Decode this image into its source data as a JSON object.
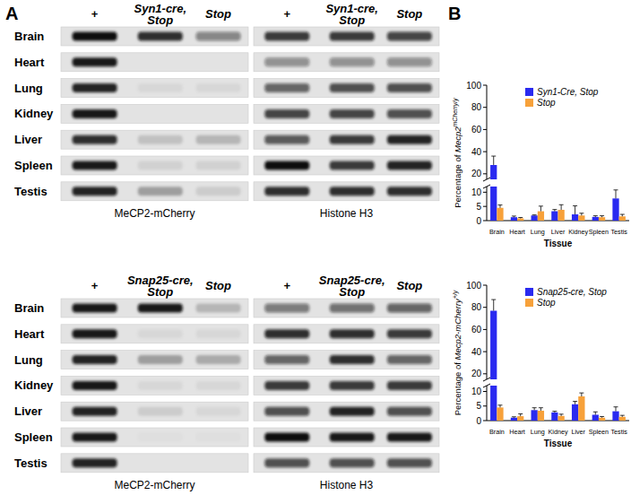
{
  "panel_labels": [
    "A",
    "B"
  ],
  "blots": [
    {
      "lanes": [
        [
          "+"
        ],
        [
          "Syn1-cre,",
          "Stop"
        ],
        [
          "Stop"
        ]
      ],
      "tissues": [
        "Brain",
        "Heart",
        "Lung",
        "Kidney",
        "Liver",
        "Spleen",
        "Testis"
      ],
      "panels": [
        {
          "caption": "MeCP2-mCherry",
          "intensity": [
            [
              1,
              0.85,
              0.45
            ],
            [
              0.95,
              0,
              0
            ],
            [
              0.9,
              0.05,
              0.05
            ],
            [
              0.95,
              0,
              0
            ],
            [
              0.85,
              0.15,
              0.2
            ],
            [
              0.95,
              0.08,
              0.08
            ],
            [
              0.9,
              0.3,
              0.1
            ]
          ]
        },
        {
          "caption": "Histone H3",
          "intensity": [
            [
              0.8,
              0.8,
              0.75
            ],
            [
              0.4,
              0.4,
              0.4
            ],
            [
              0.6,
              0.7,
              0.7
            ],
            [
              0.75,
              0.75,
              0.7
            ],
            [
              0.65,
              0.8,
              0.9
            ],
            [
              1,
              0.8,
              0.9
            ],
            [
              0.85,
              0.85,
              0.85
            ]
          ]
        }
      ]
    },
    {
      "lanes": [
        [
          "+"
        ],
        [
          "Snap25-cre,",
          "Stop"
        ],
        [
          "Stop"
        ]
      ],
      "tissues": [
        "Brain",
        "Heart",
        "Lung",
        "Kidney",
        "Liver",
        "Spleen",
        "Testis"
      ],
      "panels": [
        {
          "caption": "MeCP2-mCherry",
          "intensity": [
            [
              0.95,
              0.95,
              0.2
            ],
            [
              0.95,
              0.05,
              0.05
            ],
            [
              0.9,
              0.3,
              0.25
            ],
            [
              0.95,
              0.05,
              0.05
            ],
            [
              0.9,
              0.1,
              0.05
            ],
            [
              0.95,
              0.02,
              0.02
            ],
            [
              0.9,
              0,
              0
            ]
          ]
        },
        {
          "caption": "Histone H3",
          "intensity": [
            [
              0.5,
              0.55,
              0.6
            ],
            [
              0.85,
              0.85,
              0.8
            ],
            [
              0.6,
              0.85,
              0.6
            ],
            [
              0.8,
              0.8,
              0.8
            ],
            [
              0.7,
              0.9,
              0.7
            ],
            [
              1,
              0.95,
              0.95
            ],
            [
              0.7,
              0.7,
              0.7
            ]
          ]
        }
      ]
    }
  ],
  "chart_data": [
    {
      "type": "bar",
      "x_label": "Tissue",
      "y_label": {
        "text": "Percentage of ",
        "gene": "Mecp2",
        "superscript": "mCherry/y"
      },
      "categories": [
        "Brain",
        "Heart",
        "Lung",
        "Liver",
        "Kidney",
        "Spleen",
        "Testis"
      ],
      "ylim": [
        0,
        100
      ],
      "y_break": [
        12,
        15
      ],
      "yticks": [
        0,
        5,
        10,
        20,
        40,
        60,
        80,
        100
      ],
      "legend": "upper right",
      "series": [
        {
          "name": "Syn1-Cre, Stop",
          "color": "#2a2af0",
          "values": [
            28,
            1.2,
            1.8,
            3.3,
            2.2,
            1.3,
            7.8
          ],
          "errors": [
            8,
            0.4,
            0.2,
            0.6,
            3,
            0.4,
            3
          ]
        },
        {
          "name": "Stop",
          "color": "#f7a13a",
          "values": [
            4.5,
            0.8,
            3.3,
            3.8,
            1.8,
            1.2,
            1.5
          ],
          "errors": [
            1,
            0.3,
            1.8,
            1.8,
            0.8,
            0.5,
            0.7
          ]
        }
      ]
    },
    {
      "type": "bar",
      "x_label": "Tissue",
      "y_label": {
        "text": "Percentage of ",
        "gene": "Mecp2-mCherry",
        "superscript": "+/y"
      },
      "categories": [
        "Brain",
        "Heart",
        "Lung",
        "Kidney",
        "Liver",
        "Spleen",
        "Testis"
      ],
      "ylim": [
        0,
        100
      ],
      "y_break": [
        12,
        15
      ],
      "yticks": [
        0,
        5,
        10,
        20,
        40,
        60,
        80,
        100
      ],
      "legend": "upper right",
      "series": [
        {
          "name": "Snap25-cre, Stop",
          "color": "#2a2af0",
          "values": [
            77,
            1.0,
            3.6,
            2.8,
            5.6,
            2.0,
            3.2
          ],
          "errors": [
            10,
            0.3,
            0.8,
            0.4,
            1.0,
            1.0,
            1.5
          ]
        },
        {
          "name": "Stop",
          "color": "#f7a13a",
          "values": [
            4.5,
            1.5,
            3.4,
            1.6,
            8.3,
            1.0,
            1.3
          ],
          "errors": [
            0.8,
            0.8,
            1.0,
            0.6,
            1.2,
            0.4,
            0.5
          ]
        }
      ]
    }
  ]
}
